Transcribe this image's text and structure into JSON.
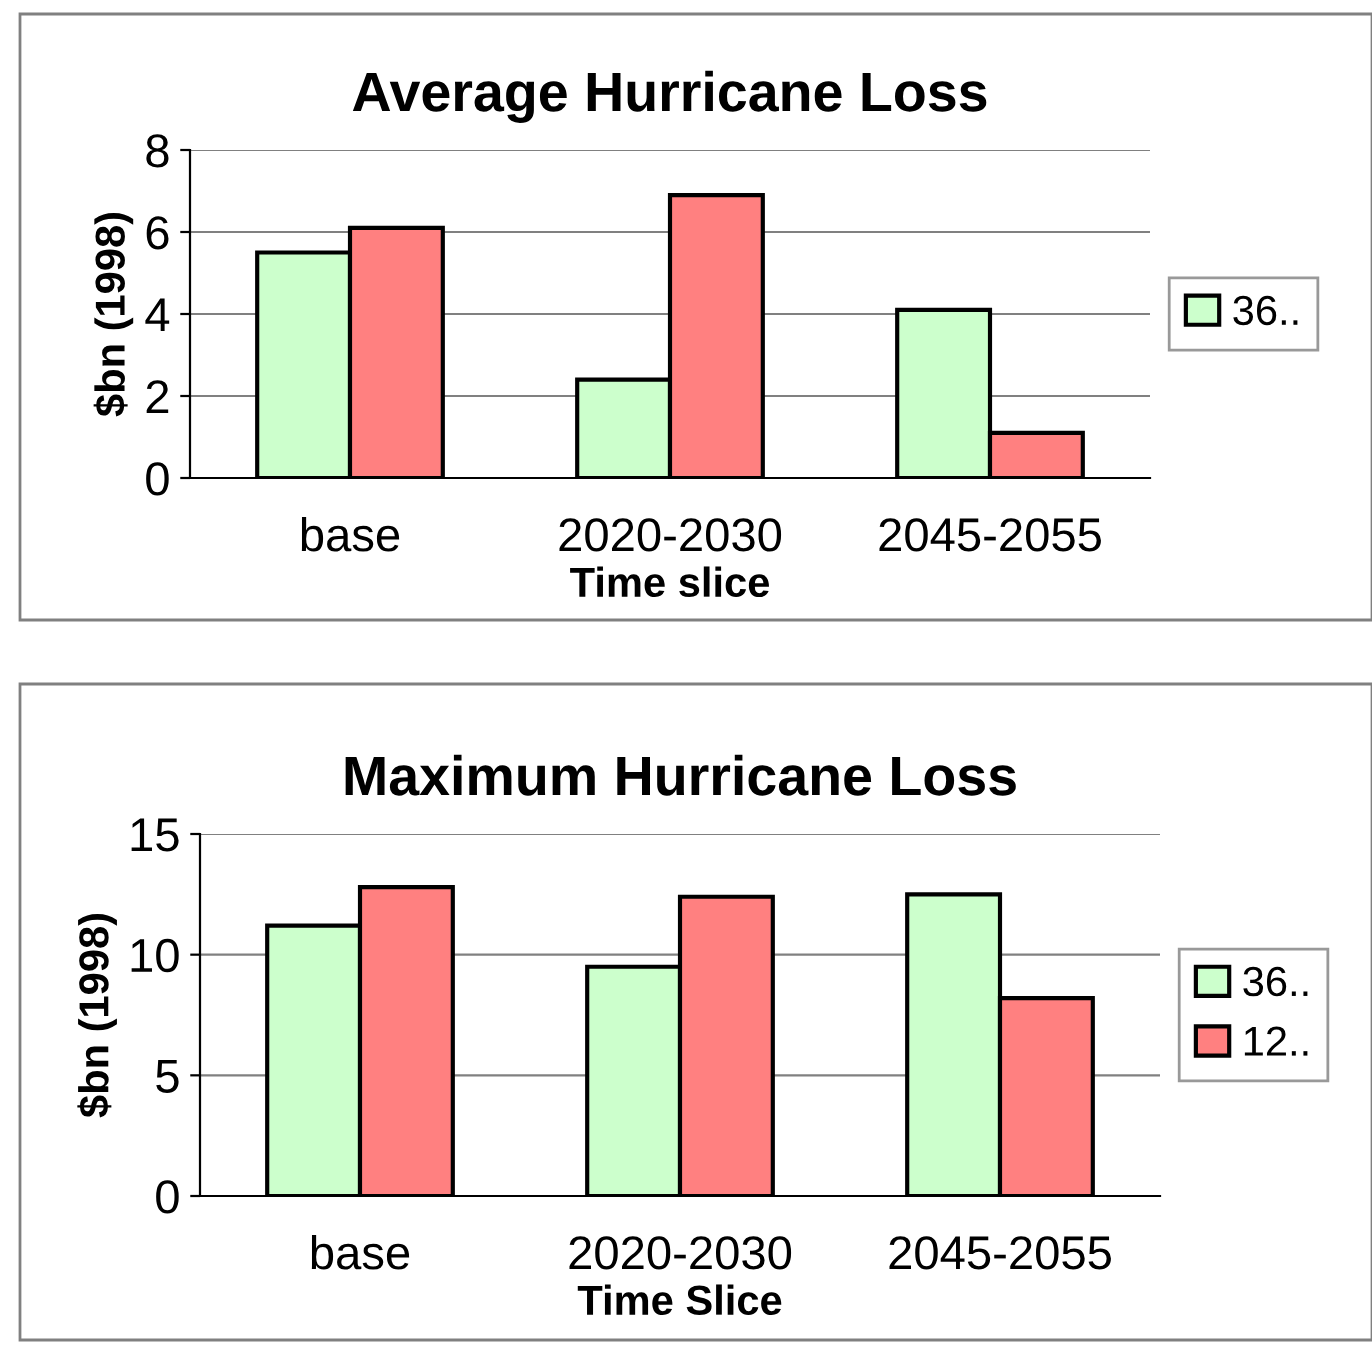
{
  "chart_data": [
    {
      "type": "bar",
      "title": "Average Hurricane Loss",
      "xlabel": "Time slice",
      "ylabel": "$bn (1998)",
      "categories": [
        "base",
        "2020-2030",
        "2045-2055"
      ],
      "series": [
        {
          "name": "36..",
          "color": "#ccffcc",
          "values": [
            5.5,
            2.4,
            4.1
          ]
        },
        {
          "color": "#ff8080",
          "values": [
            6.1,
            6.9,
            1.1
          ]
        }
      ],
      "ylim": [
        0,
        8
      ],
      "yticks": [
        0,
        2,
        4,
        6,
        8
      ],
      "grid": "y",
      "legend": "right"
    },
    {
      "type": "bar",
      "title": "Maximum Hurricane Loss",
      "xlabel": "Time Slice",
      "ylabel": "$bn (1998)",
      "categories": [
        "base",
        "2020-2030",
        "2045-2055"
      ],
      "series": [
        {
          "name": "36..",
          "color": "#ccffcc",
          "values": [
            11.2,
            9.5,
            12.5
          ]
        },
        {
          "name": "12..",
          "color": "#ff8080",
          "values": [
            12.8,
            12.4,
            8.2
          ]
        }
      ],
      "ylim": [
        0,
        15
      ],
      "yticks": [
        0,
        5,
        10,
        15
      ],
      "grid": "y",
      "legend": "right"
    }
  ]
}
